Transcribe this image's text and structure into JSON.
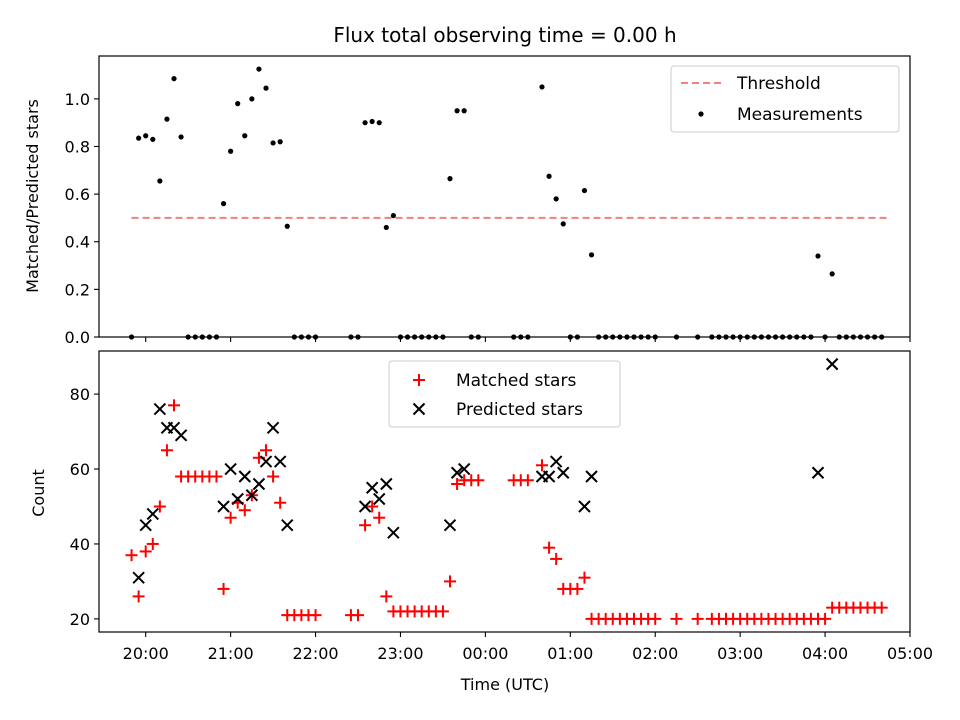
{
  "figure": {
    "title": "Flux total observing time = 0.00 h",
    "xlabel": "Time (UTC)"
  },
  "chart_data": [
    {
      "type": "scatter",
      "ylabel": "Matched/Predicted stars",
      "xlim": [
        "19:27",
        "05:00"
      ],
      "ylim": [
        0,
        1.18
      ],
      "yticks": [
        0.0,
        0.2,
        0.4,
        0.6,
        0.8,
        1.0
      ],
      "ytick_labels": [
        "0.0",
        "0.2",
        "0.4",
        "0.6",
        "0.8",
        "1.0"
      ],
      "legend_position": "upper right",
      "threshold": {
        "name": "Threshold",
        "value": 0.5,
        "x": [
          "19:50",
          "04:45"
        ],
        "color": "#f08080",
        "style": "dashed"
      },
      "series": [
        {
          "name": "Measurements",
          "color": "#000000",
          "marker": "dot",
          "points": [
            [
              "19:50",
              0
            ],
            [
              "19:55",
              0.835
            ],
            [
              "20:00",
              0.845
            ],
            [
              "20:05",
              0.83
            ],
            [
              "20:10",
              0.655
            ],
            [
              "20:15",
              0.915
            ],
            [
              "20:20",
              1.085
            ],
            [
              "20:25",
              0.84
            ],
            [
              "20:30",
              0
            ],
            [
              "20:35",
              0
            ],
            [
              "20:40",
              0
            ],
            [
              "20:45",
              0
            ],
            [
              "20:50",
              0
            ],
            [
              "20:55",
              0.56
            ],
            [
              "21:00",
              0.78
            ],
            [
              "21:05",
              0.98
            ],
            [
              "21:10",
              0.845
            ],
            [
              "21:15",
              1.0
            ],
            [
              "21:20",
              1.125
            ],
            [
              "21:25",
              1.045
            ],
            [
              "21:30",
              0.815
            ],
            [
              "21:35",
              0.82
            ],
            [
              "21:40",
              0.465
            ],
            [
              "21:45",
              0
            ],
            [
              "21:50",
              0
            ],
            [
              "21:55",
              0
            ],
            [
              "22:00",
              0
            ],
            [
              "22:25",
              0
            ],
            [
              "22:30",
              0
            ],
            [
              "22:35",
              0.9
            ],
            [
              "22:40",
              0.905
            ],
            [
              "22:45",
              0.9
            ],
            [
              "22:50",
              0.46
            ],
            [
              "22:55",
              0.51
            ],
            [
              "23:00",
              0
            ],
            [
              "23:05",
              0
            ],
            [
              "23:10",
              0
            ],
            [
              "23:15",
              0
            ],
            [
              "23:20",
              0
            ],
            [
              "23:25",
              0
            ],
            [
              "23:30",
              0
            ],
            [
              "23:35",
              0.665
            ],
            [
              "23:40",
              0.95
            ],
            [
              "23:45",
              0.95
            ],
            [
              "23:50",
              0
            ],
            [
              "23:55",
              0
            ],
            [
              "00:20",
              0
            ],
            [
              "00:25",
              0
            ],
            [
              "00:30",
              0
            ],
            [
              "00:40",
              1.05
            ],
            [
              "00:45",
              0.675
            ],
            [
              "00:50",
              0.58
            ],
            [
              "00:55",
              0.475
            ],
            [
              "01:00",
              0
            ],
            [
              "01:05",
              0
            ],
            [
              "01:10",
              0.615
            ],
            [
              "01:15",
              0.345
            ],
            [
              "01:20",
              0
            ],
            [
              "01:25",
              0
            ],
            [
              "01:30",
              0
            ],
            [
              "01:35",
              0
            ],
            [
              "01:40",
              0
            ],
            [
              "01:45",
              0
            ],
            [
              "01:50",
              0
            ],
            [
              "01:55",
              0
            ],
            [
              "02:00",
              0
            ],
            [
              "02:15",
              0
            ],
            [
              "02:30",
              0
            ],
            [
              "02:40",
              0
            ],
            [
              "02:45",
              0
            ],
            [
              "02:50",
              0
            ],
            [
              "02:55",
              0
            ],
            [
              "03:00",
              0
            ],
            [
              "03:05",
              0
            ],
            [
              "03:10",
              0
            ],
            [
              "03:15",
              0
            ],
            [
              "03:20",
              0
            ],
            [
              "03:25",
              0
            ],
            [
              "03:30",
              0
            ],
            [
              "03:35",
              0
            ],
            [
              "03:40",
              0
            ],
            [
              "03:45",
              0
            ],
            [
              "03:50",
              0
            ],
            [
              "03:55",
              0.34
            ],
            [
              "04:00",
              0
            ],
            [
              "04:05",
              0.265
            ],
            [
              "04:10",
              0
            ],
            [
              "04:15",
              0
            ],
            [
              "04:20",
              0
            ],
            [
              "04:25",
              0
            ],
            [
              "04:30",
              0
            ],
            [
              "04:35",
              0
            ],
            [
              "04:40",
              0
            ]
          ]
        }
      ]
    },
    {
      "type": "scatter",
      "ylabel": "Count",
      "xlim": [
        "19:27",
        "05:00"
      ],
      "ylim": [
        16.5,
        91.5
      ],
      "yticks": [
        20,
        40,
        60,
        80
      ],
      "ytick_labels": [
        "20",
        "40",
        "60",
        "80"
      ],
      "xticks": [
        "20:00",
        "21:00",
        "22:00",
        "23:00",
        "00:00",
        "01:00",
        "02:00",
        "03:00",
        "04:00",
        "05:00"
      ],
      "xtick_labels": [
        "20:00",
        "21:00",
        "22:00",
        "23:00",
        "00:00",
        "01:00",
        "02:00",
        "03:00",
        "04:00",
        "05:00"
      ],
      "legend_position": "upper center",
      "series": [
        {
          "name": "Matched stars",
          "color": "#ff0000",
          "marker": "plus",
          "points": [
            [
              "19:50",
              37
            ],
            [
              "19:55",
              26
            ],
            [
              "20:00",
              38
            ],
            [
              "20:05",
              40
            ],
            [
              "20:10",
              50
            ],
            [
              "20:15",
              65
            ],
            [
              "20:20",
              77
            ],
            [
              "20:25",
              58
            ],
            [
              "20:30",
              58
            ],
            [
              "20:35",
              58
            ],
            [
              "20:40",
              58
            ],
            [
              "20:45",
              58
            ],
            [
              "20:50",
              58
            ],
            [
              "20:55",
              28
            ],
            [
              "21:00",
              47
            ],
            [
              "21:05",
              51
            ],
            [
              "21:10",
              49
            ],
            [
              "21:15",
              53
            ],
            [
              "21:20",
              63
            ],
            [
              "21:25",
              65
            ],
            [
              "21:30",
              58
            ],
            [
              "21:35",
              51
            ],
            [
              "21:40",
              21
            ],
            [
              "21:45",
              21
            ],
            [
              "21:50",
              21
            ],
            [
              "21:55",
              21
            ],
            [
              "22:00",
              21
            ],
            [
              "22:25",
              21
            ],
            [
              "22:30",
              21
            ],
            [
              "22:35",
              45
            ],
            [
              "22:40",
              50
            ],
            [
              "22:45",
              47
            ],
            [
              "22:50",
              26
            ],
            [
              "22:55",
              22
            ],
            [
              "23:00",
              22
            ],
            [
              "23:05",
              22
            ],
            [
              "23:10",
              22
            ],
            [
              "23:15",
              22
            ],
            [
              "23:20",
              22
            ],
            [
              "23:25",
              22
            ],
            [
              "23:30",
              22
            ],
            [
              "23:35",
              30
            ],
            [
              "23:40",
              56
            ],
            [
              "23:45",
              57
            ],
            [
              "23:50",
              57
            ],
            [
              "23:55",
              57
            ],
            [
              "00:20",
              57
            ],
            [
              "00:25",
              57
            ],
            [
              "00:30",
              57
            ],
            [
              "00:40",
              61
            ],
            [
              "00:45",
              39
            ],
            [
              "00:50",
              36
            ],
            [
              "00:55",
              28
            ],
            [
              "01:00",
              28
            ],
            [
              "01:05",
              28
            ],
            [
              "01:10",
              31
            ],
            [
              "01:15",
              20
            ],
            [
              "01:20",
              20
            ],
            [
              "01:25",
              20
            ],
            [
              "01:30",
              20
            ],
            [
              "01:35",
              20
            ],
            [
              "01:40",
              20
            ],
            [
              "01:45",
              20
            ],
            [
              "01:50",
              20
            ],
            [
              "01:55",
              20
            ],
            [
              "02:00",
              20
            ],
            [
              "02:15",
              20
            ],
            [
              "02:30",
              20
            ],
            [
              "02:40",
              20
            ],
            [
              "02:45",
              20
            ],
            [
              "02:50",
              20
            ],
            [
              "02:55",
              20
            ],
            [
              "03:00",
              20
            ],
            [
              "03:05",
              20
            ],
            [
              "03:10",
              20
            ],
            [
              "03:15",
              20
            ],
            [
              "03:20",
              20
            ],
            [
              "03:25",
              20
            ],
            [
              "03:30",
              20
            ],
            [
              "03:35",
              20
            ],
            [
              "03:40",
              20
            ],
            [
              "03:45",
              20
            ],
            [
              "03:50",
              20
            ],
            [
              "03:55",
              20
            ],
            [
              "04:00",
              20
            ],
            [
              "04:05",
              23
            ],
            [
              "04:10",
              23
            ],
            [
              "04:15",
              23
            ],
            [
              "04:20",
              23
            ],
            [
              "04:25",
              23
            ],
            [
              "04:30",
              23
            ],
            [
              "04:35",
              23
            ],
            [
              "04:40",
              23
            ]
          ]
        },
        {
          "name": "Predicted stars",
          "color": "#000000",
          "marker": "x",
          "points": [
            [
              "19:55",
              31
            ],
            [
              "20:00",
              45
            ],
            [
              "20:05",
              48
            ],
            [
              "20:10",
              76
            ],
            [
              "20:15",
              71
            ],
            [
              "20:20",
              71
            ],
            [
              "20:25",
              69
            ],
            [
              "20:55",
              50
            ],
            [
              "21:00",
              60
            ],
            [
              "21:05",
              52
            ],
            [
              "21:10",
              58
            ],
            [
              "21:15",
              53
            ],
            [
              "21:20",
              56
            ],
            [
              "21:25",
              62
            ],
            [
              "21:30",
              71
            ],
            [
              "21:35",
              62
            ],
            [
              "21:40",
              45
            ],
            [
              "22:35",
              50
            ],
            [
              "22:40",
              55
            ],
            [
              "22:45",
              52
            ],
            [
              "22:50",
              56
            ],
            [
              "22:55",
              43
            ],
            [
              "23:35",
              45
            ],
            [
              "23:40",
              59
            ],
            [
              "23:45",
              60
            ],
            [
              "00:40",
              58
            ],
            [
              "00:45",
              58
            ],
            [
              "00:50",
              62
            ],
            [
              "00:55",
              59
            ],
            [
              "01:10",
              50
            ],
            [
              "01:15",
              58
            ],
            [
              "03:55",
              59
            ],
            [
              "04:05",
              88
            ]
          ]
        }
      ]
    }
  ]
}
